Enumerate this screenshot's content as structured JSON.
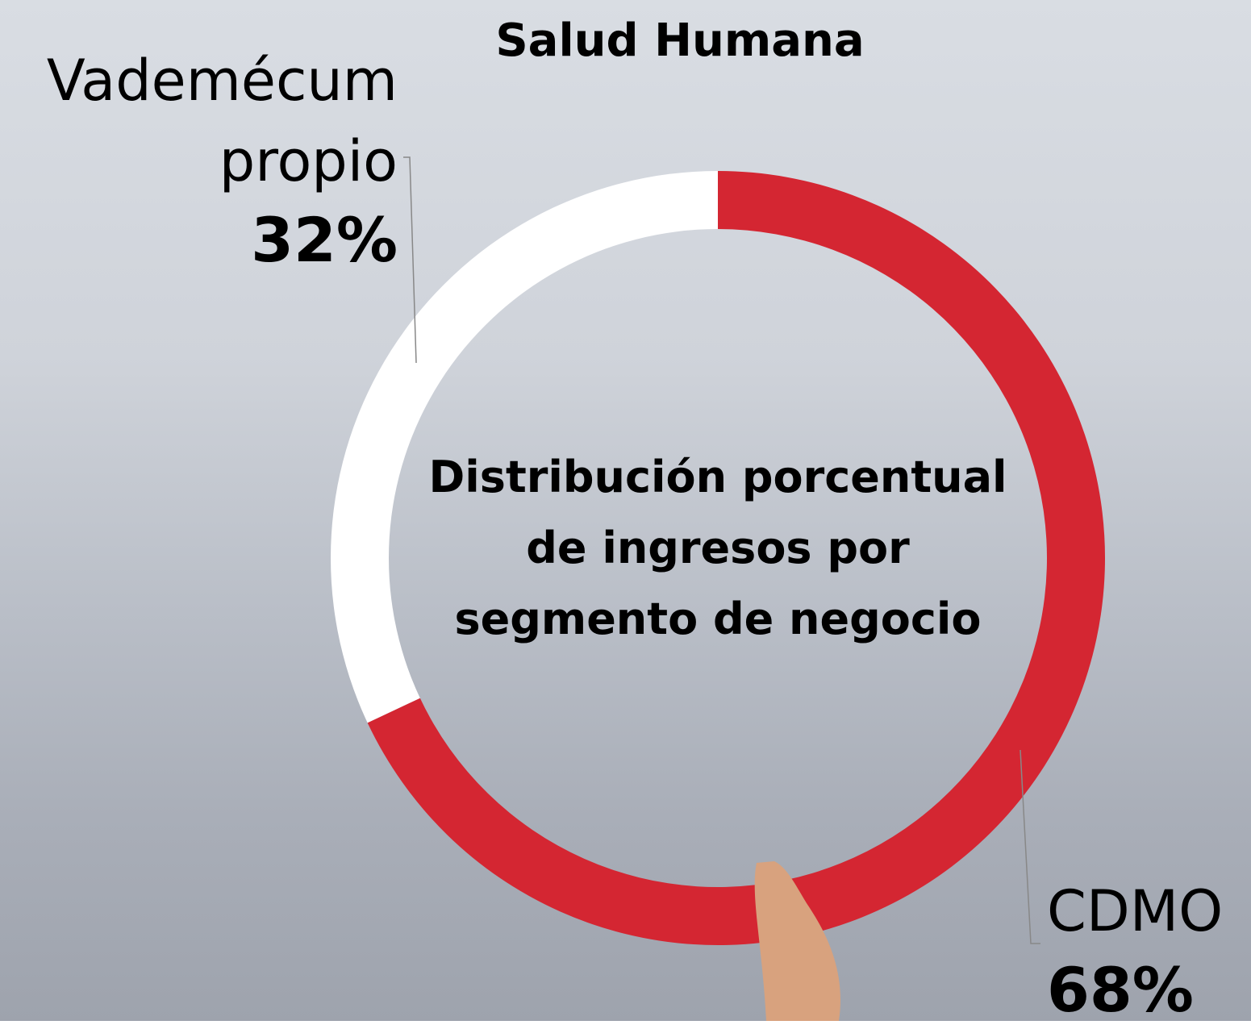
{
  "chart_data": {
    "type": "pie",
    "title": "Salud Humana",
    "center_text": "Distribución porcentual de ingresos por segmento de negocio",
    "categories": [
      "CDMO",
      "Vademécum propio"
    ],
    "values": [
      68,
      32
    ],
    "value_labels": [
      "68%",
      "32%"
    ],
    "colors": [
      "#d42632",
      "#ffffff"
    ]
  }
}
